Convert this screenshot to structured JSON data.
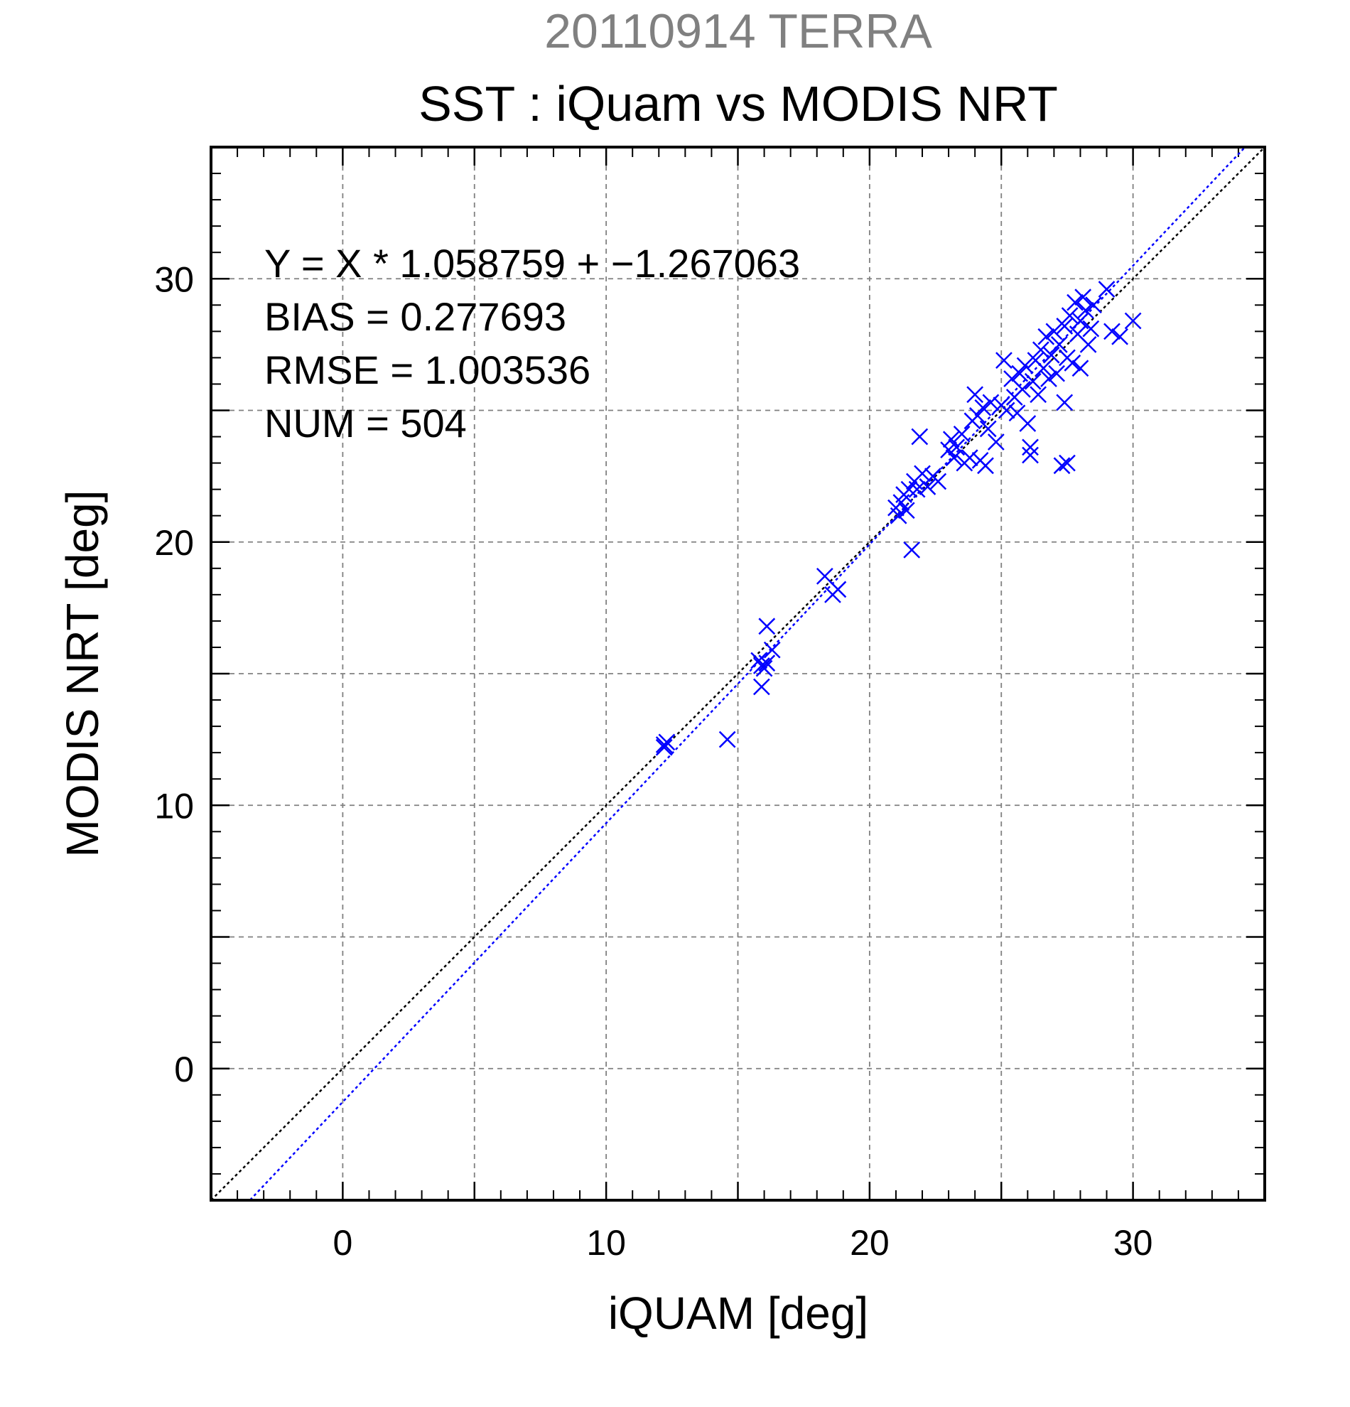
{
  "header": {
    "date_title": "20110914 TERRA",
    "main_title": "SST : iQuam vs MODIS NRT"
  },
  "stats": {
    "regression": "Y = X * 1.058759 + −1.267063",
    "bias": "BIAS = 0.277693",
    "rmse": "RMSE = 1.003536",
    "num": "NUM = 504"
  },
  "chart_data": {
    "type": "scatter",
    "xlabel": "iQUAM [deg]",
    "ylabel": "MODIS NRT [deg]",
    "xlim": [
      -5,
      35
    ],
    "ylim": [
      -5,
      35
    ],
    "x_ticks": [
      0,
      10,
      20,
      30
    ],
    "y_ticks": [
      0,
      10,
      20,
      30
    ],
    "x_tick_labels": [
      "0",
      "10",
      "20",
      "30"
    ],
    "y_tick_labels": [
      "0",
      "10",
      "20",
      "30"
    ],
    "grid": true,
    "marker": "x",
    "marker_color": "#0000ff",
    "identity_line_color": "#000000",
    "fit_line": {
      "slope": 1.058759,
      "intercept": -1.267063,
      "color": "#0000ff"
    },
    "series": [
      {
        "points": [
          [
            12.2,
            12.3
          ],
          [
            12.2,
            12.2
          ],
          [
            12.3,
            12.4
          ],
          [
            14.6,
            12.5
          ],
          [
            15.8,
            15.5
          ],
          [
            15.9,
            14.5
          ],
          [
            16.0,
            15.2
          ],
          [
            16.1,
            15.4
          ],
          [
            16.1,
            16.8
          ],
          [
            16.3,
            15.9
          ],
          [
            15.9,
            15.3
          ],
          [
            18.3,
            18.7
          ],
          [
            18.6,
            18.0
          ],
          [
            18.8,
            18.2
          ],
          [
            21.0,
            21.3
          ],
          [
            21.1,
            21.0
          ],
          [
            21.2,
            21.5
          ],
          [
            21.3,
            21.8
          ],
          [
            21.4,
            21.2
          ],
          [
            21.5,
            22.0
          ],
          [
            21.6,
            19.7
          ],
          [
            21.7,
            22.3
          ],
          [
            21.8,
            22.0
          ],
          [
            21.9,
            24.0
          ],
          [
            22.0,
            22.6
          ],
          [
            22.2,
            22.1
          ],
          [
            22.4,
            22.5
          ],
          [
            22.6,
            22.3
          ],
          [
            23.0,
            23.5
          ],
          [
            23.1,
            23.9
          ],
          [
            23.2,
            23.2
          ],
          [
            23.3,
            23.6
          ],
          [
            23.5,
            24.1
          ],
          [
            23.6,
            23.0
          ],
          [
            23.8,
            23.2
          ],
          [
            23.9,
            24.6
          ],
          [
            24.0,
            25.6
          ],
          [
            24.1,
            24.8
          ],
          [
            24.2,
            23.1
          ],
          [
            24.3,
            25.1
          ],
          [
            24.4,
            22.9
          ],
          [
            24.5,
            24.3
          ],
          [
            24.6,
            25.3
          ],
          [
            24.8,
            23.8
          ],
          [
            25.0,
            25.2
          ],
          [
            25.1,
            26.9
          ],
          [
            25.2,
            25.0
          ],
          [
            25.4,
            26.2
          ],
          [
            25.5,
            25.5
          ],
          [
            25.6,
            24.9
          ],
          [
            25.7,
            26.4
          ],
          [
            25.8,
            25.8
          ],
          [
            25.9,
            26.7
          ],
          [
            26.0,
            24.5
          ],
          [
            26.1,
            23.3
          ],
          [
            26.1,
            23.6
          ],
          [
            26.2,
            26.1
          ],
          [
            26.3,
            26.9
          ],
          [
            26.4,
            25.6
          ],
          [
            26.5,
            27.3
          ],
          [
            26.6,
            26.6
          ],
          [
            26.7,
            27.8
          ],
          [
            26.8,
            26.2
          ],
          [
            26.9,
            27.1
          ],
          [
            27.0,
            28.0
          ],
          [
            27.1,
            26.4
          ],
          [
            27.2,
            27.5
          ],
          [
            27.3,
            22.9
          ],
          [
            27.4,
            28.2
          ],
          [
            27.4,
            25.3
          ],
          [
            27.5,
            27.0
          ],
          [
            27.5,
            23.0
          ],
          [
            27.6,
            28.6
          ],
          [
            27.7,
            26.8
          ],
          [
            27.8,
            29.1
          ],
          [
            27.9,
            27.9
          ],
          [
            28.0,
            28.4
          ],
          [
            28.0,
            26.6
          ],
          [
            28.1,
            29.3
          ],
          [
            28.2,
            28.8
          ],
          [
            28.3,
            27.5
          ],
          [
            28.4,
            28.1
          ],
          [
            28.5,
            29.0
          ],
          [
            29.0,
            29.6
          ],
          [
            29.2,
            28.0
          ],
          [
            29.5,
            27.8
          ],
          [
            30.0,
            28.4
          ]
        ]
      }
    ]
  }
}
